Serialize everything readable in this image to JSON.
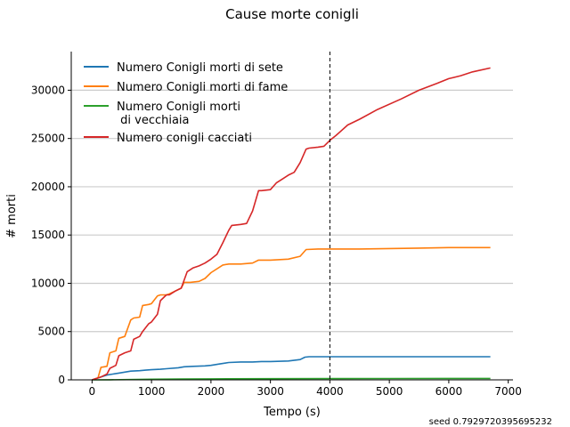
{
  "chart_data": {
    "type": "line",
    "title": "Cause morte conigli",
    "xlabel": "Tempo (s)",
    "ylabel": "# morti",
    "xlim": [
      -350,
      7080
    ],
    "ylim": [
      0,
      34000
    ],
    "xticks": [
      0,
      1000,
      2000,
      3000,
      4000,
      5000,
      6000,
      7000
    ],
    "yticks": [
      0,
      5000,
      10000,
      15000,
      20000,
      25000,
      30000
    ],
    "grid": "horizontal",
    "legend_position": "top-left",
    "vline": {
      "x": 4000,
      "style": "dashed",
      "color": "#000000"
    },
    "footnote": "seed 0.7929720395695232",
    "series": [
      {
        "name": "Numero Conigli morti di sete",
        "color": "#1f77b4",
        "x": [
          0,
          150,
          250,
          350,
          450,
          550,
          650,
          800,
          900,
          1000,
          1150,
          1250,
          1450,
          1550,
          1700,
          1900,
          2000,
          2150,
          2300,
          2500,
          2700,
          2850,
          3000,
          3300,
          3500,
          3580,
          3650,
          3800,
          4000,
          5000,
          6000,
          6700
        ],
        "y": [
          0,
          300,
          500,
          600,
          700,
          800,
          900,
          950,
          1000,
          1050,
          1100,
          1150,
          1250,
          1350,
          1400,
          1450,
          1500,
          1650,
          1800,
          1850,
          1850,
          1900,
          1900,
          1950,
          2100,
          2350,
          2400,
          2400,
          2400,
          2400,
          2400,
          2400
        ]
      },
      {
        "name": "Numero Conigli morti di fame",
        "color": "#ff7f0e",
        "x": [
          0,
          100,
          150,
          250,
          300,
          400,
          450,
          550,
          650,
          700,
          800,
          850,
          950,
          1000,
          1100,
          1150,
          1250,
          1300,
          1400,
          1500,
          1550,
          1650,
          1800,
          1900,
          2000,
          2200,
          2300,
          2500,
          2700,
          2800,
          3000,
          3300,
          3500,
          3600,
          3800,
          4000,
          4500,
          5000,
          5500,
          6000,
          6700
        ],
        "y": [
          0,
          200,
          1300,
          1400,
          2800,
          3000,
          4300,
          4500,
          6200,
          6400,
          6500,
          7700,
          7800,
          7900,
          8700,
          8800,
          8800,
          8900,
          9200,
          9500,
          10100,
          10100,
          10200,
          10500,
          11100,
          11900,
          12000,
          12000,
          12100,
          12400,
          12400,
          12500,
          12800,
          13500,
          13550,
          13550,
          13550,
          13600,
          13650,
          13700,
          13700
        ]
      },
      {
        "name": "Numero Conigli morti\n di vecchiaia",
        "color": "#2ca02c",
        "x": [
          0,
          300,
          600,
          1000,
          1500,
          2000,
          3000,
          4000,
          5000,
          6000,
          6700
        ],
        "y": [
          0,
          10,
          30,
          60,
          80,
          100,
          120,
          130,
          140,
          150,
          150
        ]
      },
      {
        "name": "Numero conigli cacciati",
        "color": "#d62728",
        "x": [
          0,
          150,
          250,
          300,
          400,
          450,
          550,
          650,
          700,
          800,
          850,
          950,
          1000,
          1100,
          1150,
          1250,
          1300,
          1400,
          1500,
          1600,
          1700,
          1800,
          1900,
          2000,
          2100,
          2200,
          2300,
          2350,
          2500,
          2600,
          2700,
          2800,
          2850,
          3000,
          3100,
          3200,
          3300,
          3400,
          3500,
          3600,
          3650,
          3800,
          3900,
          4000,
          4100,
          4300,
          4500,
          4800,
          5200,
          5500,
          5800,
          6000,
          6200,
          6400,
          6700
        ],
        "y": [
          0,
          300,
          600,
          1200,
          1500,
          2500,
          2800,
          3000,
          4200,
          4500,
          5000,
          5800,
          6000,
          6800,
          8200,
          8800,
          8800,
          9200,
          9500,
          11200,
          11600,
          11800,
          12100,
          12500,
          13000,
          14200,
          15500,
          16000,
          16100,
          16200,
          17500,
          19600,
          19600,
          19700,
          20400,
          20800,
          21200,
          21500,
          22500,
          23900,
          24000,
          24100,
          24200,
          24800,
          25300,
          26400,
          27000,
          28000,
          29100,
          30000,
          30700,
          31200,
          31500,
          31900,
          32300
        ]
      }
    ]
  }
}
